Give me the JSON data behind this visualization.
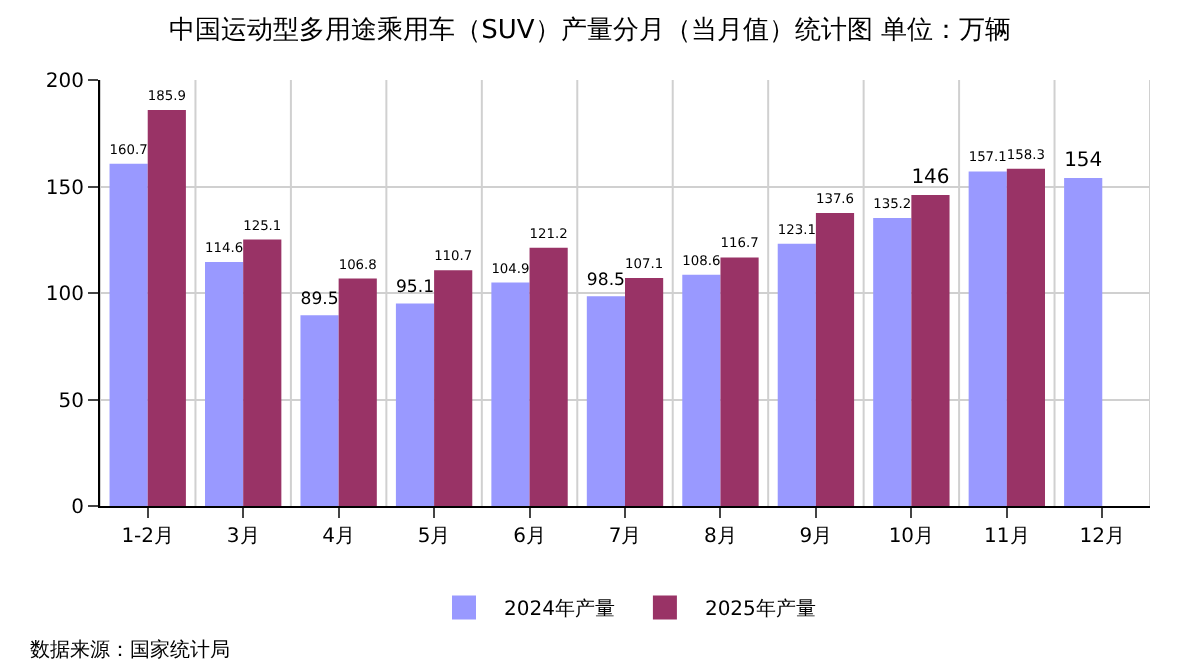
{
  "chart_data": {
    "type": "bar",
    "title": "中国运动型多用途乘用车（SUV）产量分月（当月值）统计图 单位：万辆",
    "categories": [
      "1-2月",
      "3月",
      "4月",
      "5月",
      "6月",
      "7月",
      "8月",
      "9月",
      "10月",
      "11月",
      "12月"
    ],
    "series": [
      {
        "name": "2024年产量",
        "color": "#9999ff",
        "values": [
          160.7,
          114.6,
          89.5,
          95.1,
          104.9,
          98.5,
          108.6,
          123.1,
          135.2,
          157.1,
          154
        ]
      },
      {
        "name": "2025年产量",
        "color": "#993366",
        "values": [
          185.9,
          125.1,
          106.8,
          110.7,
          121.2,
          107.1,
          116.7,
          137.6,
          146,
          158.3,
          null
        ]
      }
    ],
    "ylim": [
      0,
      200
    ],
    "yticks": [
      0,
      50,
      100,
      150,
      200
    ],
    "grid": true,
    "legend": "bottom",
    "data_labels": true,
    "annotations": [
      "数据来源：国家统计局"
    ]
  }
}
